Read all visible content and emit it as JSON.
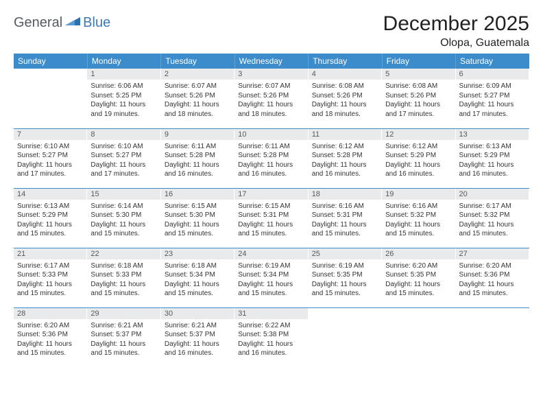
{
  "logo": {
    "part1": "General",
    "part2": "Blue"
  },
  "title": "December 2025",
  "location": "Olopa, Guatemala",
  "colors": {
    "header_bg": "#3c8ccb",
    "header_text": "#ffffff",
    "daynum_bg": "#e9eaeb",
    "daynum_text": "#585858",
    "body_text": "#333333",
    "rule": "#3c8ccb",
    "logo_gray": "#555b60",
    "logo_blue": "#3a7ab8"
  },
  "weekdays": [
    "Sunday",
    "Monday",
    "Tuesday",
    "Wednesday",
    "Thursday",
    "Friday",
    "Saturday"
  ],
  "weeks": [
    [
      null,
      {
        "n": "1",
        "sr": "6:06 AM",
        "ss": "5:25 PM",
        "dh": "11",
        "dm": "19"
      },
      {
        "n": "2",
        "sr": "6:07 AM",
        "ss": "5:26 PM",
        "dh": "11",
        "dm": "18"
      },
      {
        "n": "3",
        "sr": "6:07 AM",
        "ss": "5:26 PM",
        "dh": "11",
        "dm": "18"
      },
      {
        "n": "4",
        "sr": "6:08 AM",
        "ss": "5:26 PM",
        "dh": "11",
        "dm": "18"
      },
      {
        "n": "5",
        "sr": "6:08 AM",
        "ss": "5:26 PM",
        "dh": "11",
        "dm": "17"
      },
      {
        "n": "6",
        "sr": "6:09 AM",
        "ss": "5:27 PM",
        "dh": "11",
        "dm": "17"
      }
    ],
    [
      {
        "n": "7",
        "sr": "6:10 AM",
        "ss": "5:27 PM",
        "dh": "11",
        "dm": "17"
      },
      {
        "n": "8",
        "sr": "6:10 AM",
        "ss": "5:27 PM",
        "dh": "11",
        "dm": "17"
      },
      {
        "n": "9",
        "sr": "6:11 AM",
        "ss": "5:28 PM",
        "dh": "11",
        "dm": "16"
      },
      {
        "n": "10",
        "sr": "6:11 AM",
        "ss": "5:28 PM",
        "dh": "11",
        "dm": "16"
      },
      {
        "n": "11",
        "sr": "6:12 AM",
        "ss": "5:28 PM",
        "dh": "11",
        "dm": "16"
      },
      {
        "n": "12",
        "sr": "6:12 AM",
        "ss": "5:29 PM",
        "dh": "11",
        "dm": "16"
      },
      {
        "n": "13",
        "sr": "6:13 AM",
        "ss": "5:29 PM",
        "dh": "11",
        "dm": "16"
      }
    ],
    [
      {
        "n": "14",
        "sr": "6:13 AM",
        "ss": "5:29 PM",
        "dh": "11",
        "dm": "15"
      },
      {
        "n": "15",
        "sr": "6:14 AM",
        "ss": "5:30 PM",
        "dh": "11",
        "dm": "15"
      },
      {
        "n": "16",
        "sr": "6:15 AM",
        "ss": "5:30 PM",
        "dh": "11",
        "dm": "15"
      },
      {
        "n": "17",
        "sr": "6:15 AM",
        "ss": "5:31 PM",
        "dh": "11",
        "dm": "15"
      },
      {
        "n": "18",
        "sr": "6:16 AM",
        "ss": "5:31 PM",
        "dh": "11",
        "dm": "15"
      },
      {
        "n": "19",
        "sr": "6:16 AM",
        "ss": "5:32 PM",
        "dh": "11",
        "dm": "15"
      },
      {
        "n": "20",
        "sr": "6:17 AM",
        "ss": "5:32 PM",
        "dh": "11",
        "dm": "15"
      }
    ],
    [
      {
        "n": "21",
        "sr": "6:17 AM",
        "ss": "5:33 PM",
        "dh": "11",
        "dm": "15"
      },
      {
        "n": "22",
        "sr": "6:18 AM",
        "ss": "5:33 PM",
        "dh": "11",
        "dm": "15"
      },
      {
        "n": "23",
        "sr": "6:18 AM",
        "ss": "5:34 PM",
        "dh": "11",
        "dm": "15"
      },
      {
        "n": "24",
        "sr": "6:19 AM",
        "ss": "5:34 PM",
        "dh": "11",
        "dm": "15"
      },
      {
        "n": "25",
        "sr": "6:19 AM",
        "ss": "5:35 PM",
        "dh": "11",
        "dm": "15"
      },
      {
        "n": "26",
        "sr": "6:20 AM",
        "ss": "5:35 PM",
        "dh": "11",
        "dm": "15"
      },
      {
        "n": "27",
        "sr": "6:20 AM",
        "ss": "5:36 PM",
        "dh": "11",
        "dm": "15"
      }
    ],
    [
      {
        "n": "28",
        "sr": "6:20 AM",
        "ss": "5:36 PM",
        "dh": "11",
        "dm": "15"
      },
      {
        "n": "29",
        "sr": "6:21 AM",
        "ss": "5:37 PM",
        "dh": "11",
        "dm": "15"
      },
      {
        "n": "30",
        "sr": "6:21 AM",
        "ss": "5:37 PM",
        "dh": "11",
        "dm": "16"
      },
      {
        "n": "31",
        "sr": "6:22 AM",
        "ss": "5:38 PM",
        "dh": "11",
        "dm": "16"
      },
      null,
      null,
      null
    ]
  ],
  "labels": {
    "sunrise": "Sunrise: ",
    "sunset": "Sunset: ",
    "daylight_pre": "Daylight: ",
    "hours": " hours",
    "and": "and ",
    "minutes": " minutes."
  }
}
